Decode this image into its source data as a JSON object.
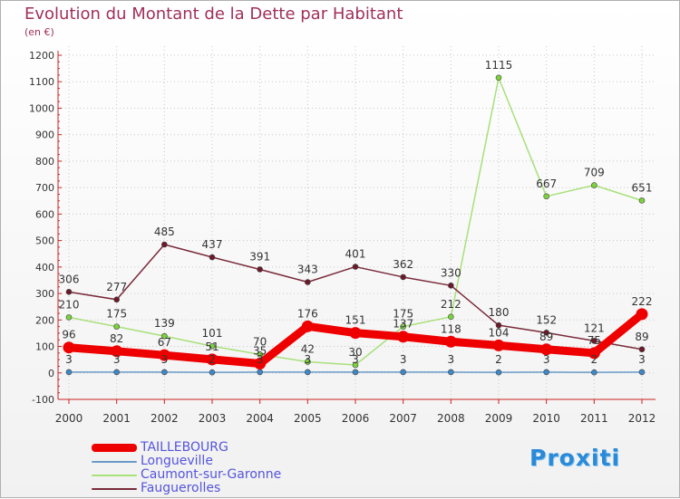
{
  "title": "Evolution du Montant de la Dette par Habitant",
  "unit": "(en €)",
  "brand": "Proxiti",
  "colors": {
    "title": "#a0305a",
    "axis": "#cc2222",
    "legend_text": "#5555dd",
    "label_text": "#333333"
  },
  "chart_data": {
    "type": "line",
    "categories": [
      "2000",
      "2001",
      "2002",
      "2003",
      "2004",
      "2005",
      "2006",
      "2007",
      "2008",
      "2009",
      "2010",
      "2011",
      "2012"
    ],
    "ylim": [
      -100,
      1200
    ],
    "yticks": [
      -100,
      0,
      100,
      200,
      300,
      400,
      500,
      600,
      700,
      800,
      900,
      1000,
      1100,
      1200
    ],
    "grid": true,
    "legend_position": "bottom-left",
    "series": [
      {
        "name": "TAILLEBOURG",
        "color": "#ee0000",
        "marker_fill": "#ee0000",
        "width": 9,
        "values": [
          96,
          82,
          67,
          51,
          35,
          176,
          151,
          137,
          118,
          104,
          89,
          75,
          222
        ],
        "labels": [
          "96",
          "82",
          "67",
          "51",
          "35",
          "176",
          "151",
          "137",
          "118",
          "104",
          "89",
          "75",
          "222"
        ]
      },
      {
        "name": "Longueville",
        "color": "#6a9bc8",
        "marker_fill": "#3f88c8",
        "width": 1.5,
        "values": [
          3,
          3,
          3,
          2,
          3,
          3,
          3,
          3,
          3,
          2,
          3,
          2,
          3
        ],
        "labels": [
          "3",
          "3",
          "3",
          "2",
          "3",
          "3",
          "3",
          "3",
          "3",
          "2",
          "3",
          "2",
          "3"
        ]
      },
      {
        "name": "Caumont-sur-Garonne",
        "color": "#a8e07a",
        "marker_fill": "#7bd23e",
        "width": 1.5,
        "values": [
          210,
          175,
          139,
          101,
          70,
          42,
          30,
          175,
          212,
          1115,
          667,
          709,
          651
        ],
        "labels": [
          "210",
          "175",
          "139",
          "101",
          "70",
          "42",
          "30",
          "175",
          "212",
          "1115",
          "667",
          "709",
          "651"
        ]
      },
      {
        "name": "Fauguerolles",
        "color": "#7a2a3a",
        "marker_fill": "#6a1a2a",
        "width": 1.5,
        "values": [
          306,
          277,
          485,
          437,
          391,
          343,
          401,
          362,
          330,
          180,
          152,
          121,
          89
        ],
        "labels": [
          "306",
          "277",
          "485",
          "437",
          "391",
          "343",
          "401",
          "362",
          "330",
          "180",
          "152",
          "121",
          "89"
        ]
      }
    ]
  }
}
